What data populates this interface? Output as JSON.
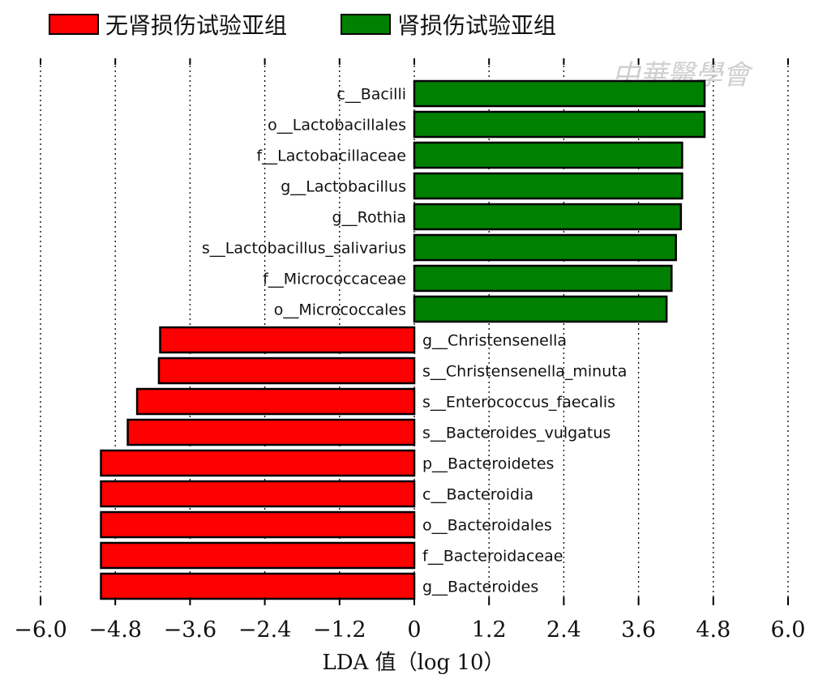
{
  "legend": {
    "items": [
      {
        "label": "无肾损伤试验亚组",
        "color": "#ff0000"
      },
      {
        "label": "肾损伤试验亚组",
        "color": "#008000"
      }
    ]
  },
  "watermark": {
    "text": "中華醫學會"
  },
  "chart_data": {
    "type": "bar",
    "orientation": "horizontal",
    "xlabel": "LDA 值（log 10）",
    "xlim": [
      -6.0,
      6.0
    ],
    "xticks": [
      "−6.0",
      "−4.8",
      "−3.6",
      "−2.4",
      "−1.2",
      "0",
      "1.2",
      "2.4",
      "3.6",
      "4.8",
      "6.0"
    ],
    "tick_values": [
      -6.0,
      -4.8,
      -3.6,
      -2.4,
      -1.2,
      0,
      1.2,
      2.4,
      3.6,
      4.8,
      6.0
    ],
    "grid": true,
    "legend_position": "top-left",
    "series": [
      {
        "name": "无肾损伤试验亚组",
        "color": "#ff0000"
      },
      {
        "name": "肾损伤试验亚组",
        "color": "#008000"
      }
    ],
    "bars": [
      {
        "label": "c__Bacilli",
        "value": 4.66,
        "series": 1
      },
      {
        "label": "o__Lactobacillales",
        "value": 4.66,
        "series": 1
      },
      {
        "label": "f__Lactobacillaceae",
        "value": 4.3,
        "series": 1
      },
      {
        "label": "g__Lactobacillus",
        "value": 4.3,
        "series": 1
      },
      {
        "label": "g__Rothia",
        "value": 4.28,
        "series": 1
      },
      {
        "label": "s__Lactobacillus_salivarius",
        "value": 4.2,
        "series": 1
      },
      {
        "label": "f__Micrococcaceae",
        "value": 4.13,
        "series": 1
      },
      {
        "label": "o__Micrococcales",
        "value": 4.05,
        "series": 1
      },
      {
        "label": "g__Christensenella",
        "value": -4.08,
        "series": 0
      },
      {
        "label": "s__Christensenella_minuta",
        "value": -4.1,
        "series": 0
      },
      {
        "label": "s__Enterococcus_faecalis",
        "value": -4.45,
        "series": 0
      },
      {
        "label": "s__Bacteroides_vulgatus",
        "value": -4.6,
        "series": 0
      },
      {
        "label": "p__Bacteroidetes",
        "value": -5.03,
        "series": 0
      },
      {
        "label": "c__Bacteroidia",
        "value": -5.03,
        "series": 0
      },
      {
        "label": "o__Bacteroidales",
        "value": -5.03,
        "series": 0
      },
      {
        "label": "f__Bacteroidaceae",
        "value": -5.03,
        "series": 0
      },
      {
        "label": "g__Bacteroides",
        "value": -5.03,
        "series": 0
      }
    ]
  }
}
